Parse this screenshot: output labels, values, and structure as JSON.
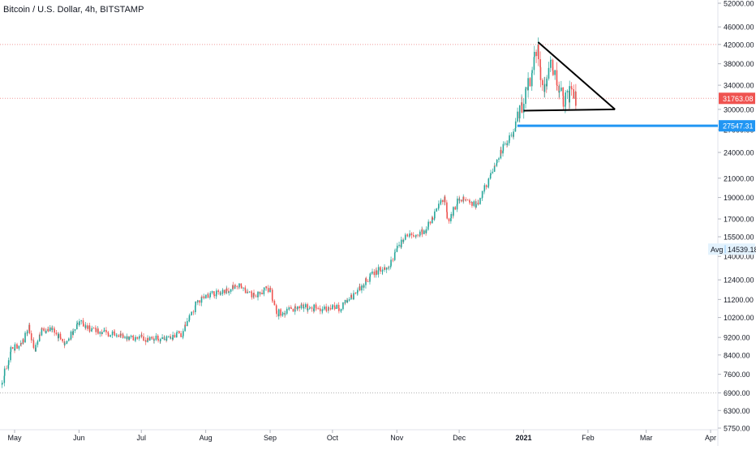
{
  "header": {
    "symbol_title": "Bitcoin / U.S. Dollar, 4h, BITSTAMP"
  },
  "colors": {
    "up": "#26a69a",
    "down": "#ef5350",
    "support": "#2196f3",
    "resistance_dotted": "#ef9a9a",
    "grid_dotted": "#b0b0b0",
    "axis_text": "#131722",
    "triangle": "#000000"
  },
  "chart_data": {
    "type": "candlestick",
    "title": "Bitcoin / U.S. Dollar, 4h, BITSTAMP",
    "y_scale": "log",
    "ylim": [
      5750,
      52000
    ],
    "y_ticks": [
      52000,
      46000,
      42000,
      38000,
      34000,
      30000,
      27000,
      24000,
      21000,
      19000,
      17000,
      15500,
      14000,
      12400,
      11200,
      10200,
      9200,
      8400,
      7600,
      6900,
      6300,
      5750
    ],
    "y_tick_labels": [
      "52000.00",
      "46000.00",
      "42000.00",
      "38000.00",
      "34000.00",
      "30000.00",
      "27000.00",
      "24000.00",
      "21000.00",
      "19000.00",
      "17000.00",
      "15500.00",
      "14000.00",
      "12400.00",
      "11200.00",
      "10200.00",
      "9200.00",
      "8400.00",
      "7600.00",
      "6900.00",
      "6300.00",
      "5750.00"
    ],
    "x_labels": [
      "May",
      "Jun",
      "Jul",
      "Aug",
      "Sep",
      "Oct",
      "Nov",
      "Dec",
      "2021",
      "Feb",
      "Mar",
      "Apr"
    ],
    "x_label_dates": [
      "2020-05-01",
      "2020-06-01",
      "2020-07-01",
      "2020-08-01",
      "2020-09-01",
      "2020-10-01",
      "2020-11-01",
      "2020-12-01",
      "2021-01-01",
      "2021-02-01",
      "2021-03-01",
      "2021-04-01"
    ],
    "price_labels": [
      {
        "value": 31763.08,
        "text": "31763.08",
        "style": "last-price"
      },
      {
        "value": 27547.31,
        "text": "27547.31",
        "style": "support"
      },
      {
        "value": 14539.18,
        "text": "14539.18",
        "prefix": "Avg",
        "style": "average"
      }
    ],
    "horizontal_lines": [
      {
        "value": 42000,
        "style": "dotted-red"
      },
      {
        "value": 31763.08,
        "style": "dotted-red"
      },
      {
        "value": 6900,
        "style": "dotted-gray"
      },
      {
        "value": 27547.31,
        "style": "solid-blue",
        "from_date": "2020-12-29"
      }
    ],
    "triangle_drawing": {
      "points": [
        {
          "date": "2021-01-08",
          "price": 42500
        },
        {
          "date": "2021-02-14",
          "price": 30000
        },
        {
          "date": "2021-01-01",
          "price": 29800
        }
      ]
    },
    "price_path": [
      {
        "date": "2020-04-25",
        "price": 7200
      },
      {
        "date": "2020-04-30",
        "price": 8700
      },
      {
        "date": "2020-05-05",
        "price": 8900
      },
      {
        "date": "2020-05-08",
        "price": 9800
      },
      {
        "date": "2020-05-11",
        "price": 8600
      },
      {
        "date": "2020-05-14",
        "price": 9600
      },
      {
        "date": "2020-05-20",
        "price": 9500
      },
      {
        "date": "2020-05-26",
        "price": 8900
      },
      {
        "date": "2020-06-01",
        "price": 10000
      },
      {
        "date": "2020-06-05",
        "price": 9700
      },
      {
        "date": "2020-06-15",
        "price": 9400
      },
      {
        "date": "2020-06-25",
        "price": 9250
      },
      {
        "date": "2020-07-05",
        "price": 9100
      },
      {
        "date": "2020-07-15",
        "price": 9200
      },
      {
        "date": "2020-07-21",
        "price": 9400
      },
      {
        "date": "2020-07-28",
        "price": 11000
      },
      {
        "date": "2020-08-02",
        "price": 11500
      },
      {
        "date": "2020-08-10",
        "price": 11600
      },
      {
        "date": "2020-08-17",
        "price": 12100
      },
      {
        "date": "2020-08-25",
        "price": 11400
      },
      {
        "date": "2020-09-01",
        "price": 11900
      },
      {
        "date": "2020-09-04",
        "price": 10400
      },
      {
        "date": "2020-09-15",
        "price": 10800
      },
      {
        "date": "2020-09-25",
        "price": 10700
      },
      {
        "date": "2020-10-05",
        "price": 10700
      },
      {
        "date": "2020-10-12",
        "price": 11500
      },
      {
        "date": "2020-10-21",
        "price": 12900
      },
      {
        "date": "2020-10-28",
        "price": 13200
      },
      {
        "date": "2020-11-05",
        "price": 15500
      },
      {
        "date": "2020-11-15",
        "price": 16000
      },
      {
        "date": "2020-11-24",
        "price": 19000
      },
      {
        "date": "2020-11-26",
        "price": 16500
      },
      {
        "date": "2020-12-01",
        "price": 19000
      },
      {
        "date": "2020-12-10",
        "price": 18200
      },
      {
        "date": "2020-12-16",
        "price": 21000
      },
      {
        "date": "2020-12-20",
        "price": 23500
      },
      {
        "date": "2020-12-27",
        "price": 26500
      },
      {
        "date": "2021-01-02",
        "price": 32000
      },
      {
        "date": "2021-01-08",
        "price": 41000
      },
      {
        "date": "2021-01-11",
        "price": 33000
      },
      {
        "date": "2021-01-14",
        "price": 39000
      },
      {
        "date": "2021-01-17",
        "price": 35500
      },
      {
        "date": "2021-01-21",
        "price": 31000
      },
      {
        "date": "2021-01-24",
        "price": 33000
      },
      {
        "date": "2021-01-27",
        "price": 31763
      }
    ]
  }
}
